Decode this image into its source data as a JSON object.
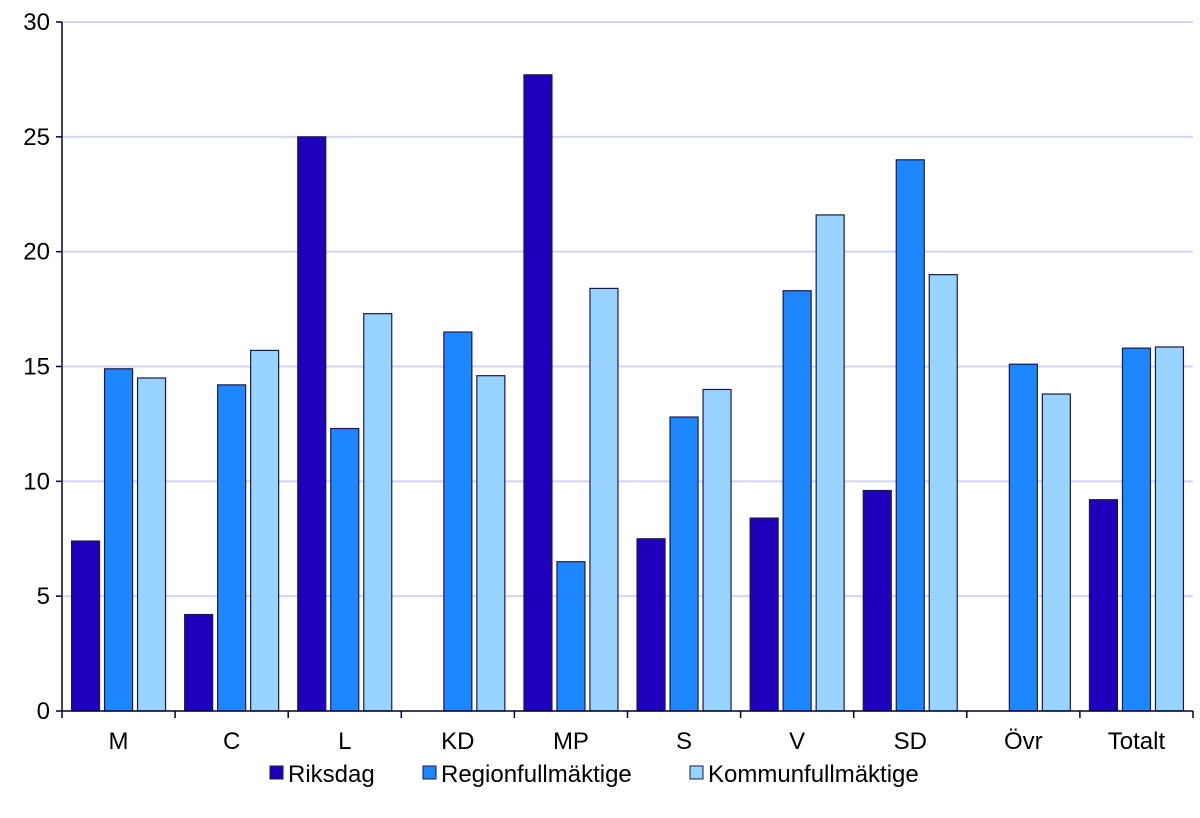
{
  "chart_data": {
    "type": "bar",
    "title": "",
    "xlabel": "",
    "ylabel": "",
    "ylim": [
      0,
      30
    ],
    "yticks": [
      0,
      5,
      10,
      15,
      20,
      25,
      30
    ],
    "grid": true,
    "legend_placement": "bottom",
    "categories": [
      "M",
      "C",
      "L",
      "KD",
      "MP",
      "S",
      "V",
      "SD",
      "Övr",
      "Totalt"
    ],
    "series": [
      {
        "name": "Riksdag",
        "color": "#1f00bd",
        "values": [
          7.4,
          4.2,
          25.0,
          null,
          27.7,
          7.5,
          8.4,
          9.6,
          null,
          9.2
        ]
      },
      {
        "name": "Regionfullmäktige",
        "color": "#1e86ff",
        "values": [
          14.9,
          14.2,
          12.3,
          16.5,
          6.5,
          12.8,
          18.3,
          24.0,
          15.1,
          15.8
        ]
      },
      {
        "name": "Kommunfullmäktige",
        "color": "#99d3ff",
        "values": [
          14.5,
          15.7,
          17.3,
          14.6,
          18.4,
          14.0,
          21.6,
          19.0,
          13.8,
          15.85
        ]
      }
    ]
  }
}
